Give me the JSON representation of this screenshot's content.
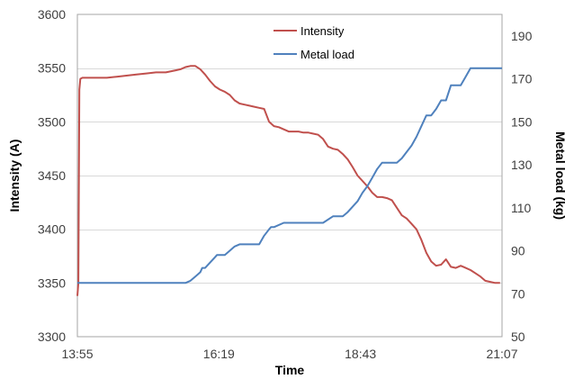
{
  "chart_data": {
    "type": "line",
    "xlabel": "Time",
    "ylabel_left": "Intensity (A)",
    "ylabel_right": "Metal load (kg)",
    "x_ticks": [
      "13:55",
      "16:19",
      "18:43",
      "21:07"
    ],
    "x_range_minutes": [
      0,
      432
    ],
    "ylim_left": [
      3300,
      3600
    ],
    "ylim_right": [
      50,
      200
    ],
    "y_ticks_left": [
      3300,
      3350,
      3400,
      3450,
      3500,
      3550,
      3600
    ],
    "y_ticks_right": [
      50,
      70,
      90,
      110,
      130,
      150,
      170,
      190
    ],
    "grid": "horizontal",
    "legend_position": "top-center",
    "series": [
      {
        "name": "Intensity",
        "axis": "left",
        "color": "#C0504D",
        "x": [
          0,
          1,
          2,
          3,
          5,
          10,
          20,
          30,
          40,
          50,
          60,
          70,
          80,
          90,
          100,
          105,
          110,
          115,
          120,
          125,
          130,
          135,
          140,
          145,
          150,
          155,
          160,
          165,
          170,
          175,
          180,
          185,
          190,
          195,
          200,
          205,
          210,
          215,
          220,
          225,
          230,
          235,
          240,
          245,
          250,
          255,
          260,
          265,
          270,
          275,
          280,
          285,
          290,
          295,
          300,
          305,
          310,
          315,
          320,
          325,
          330,
          335,
          340,
          345,
          350,
          355,
          360,
          365,
          370,
          375,
          380,
          385,
          390,
          395,
          400,
          405,
          410,
          415,
          420,
          425,
          430
        ],
        "values": [
          3338,
          3350,
          3530,
          3540,
          3541,
          3541,
          3541,
          3541,
          3542,
          3543,
          3544,
          3545,
          3546,
          3546,
          3548,
          3549,
          3551,
          3552,
          3552,
          3549,
          3544,
          3538,
          3533,
          3530,
          3528,
          3525,
          3520,
          3517,
          3516,
          3515,
          3514,
          3513,
          3512,
          3500,
          3496,
          3495,
          3493,
          3491,
          3491,
          3491,
          3490,
          3490,
          3489,
          3488,
          3484,
          3477,
          3475,
          3474,
          3470,
          3465,
          3458,
          3450,
          3445,
          3440,
          3434,
          3430,
          3430,
          3429,
          3427,
          3420,
          3413,
          3410,
          3405,
          3400,
          3390,
          3378,
          3370,
          3366,
          3367,
          3372,
          3365,
          3364,
          3366,
          3364,
          3362,
          3359,
          3356,
          3352,
          3351,
          3350,
          3350
        ]
      },
      {
        "name": "Metal load",
        "axis": "right",
        "color": "#4F81BD",
        "x": [
          0,
          110,
          115,
          120,
          125,
          127,
          130,
          140,
          142,
          150,
          160,
          165,
          170,
          175,
          180,
          185,
          190,
          195,
          197,
          200,
          210,
          215,
          220,
          230,
          240,
          250,
          260,
          265,
          270,
          275,
          285,
          290,
          295,
          300,
          305,
          310,
          315,
          320,
          325,
          330,
          340,
          345,
          350,
          355,
          360,
          365,
          370,
          375,
          380,
          385,
          390,
          395,
          400,
          405,
          410,
          415,
          420,
          432
        ],
        "values": [
          75,
          75,
          76,
          78,
          80,
          82,
          82,
          87,
          88,
          88,
          92,
          93,
          93,
          93,
          93,
          93,
          97,
          100,
          101,
          101,
          103,
          103,
          103,
          103,
          103,
          103,
          106,
          106,
          106,
          108,
          113,
          117,
          120,
          124,
          128,
          131,
          131,
          131,
          131,
          133,
          139,
          143,
          148,
          153,
          153,
          156,
          160,
          160,
          167,
          167,
          167,
          171,
          175,
          175,
          175,
          175,
          175,
          175
        ]
      }
    ]
  }
}
